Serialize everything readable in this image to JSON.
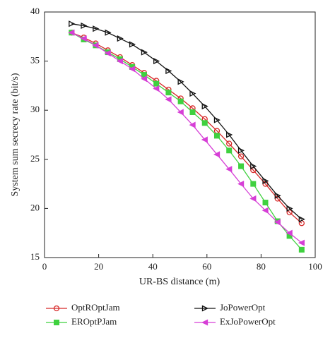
{
  "chart_data": {
    "type": "line",
    "xlabel": "UR-BS distance (m)",
    "ylabel": "System sum secrecy rate (bit/s)",
    "x": [
      10,
      14.5,
      18.9,
      23.4,
      27.9,
      32.4,
      36.8,
      41.3,
      45.8,
      50.3,
      54.7,
      59.2,
      63.7,
      68.2,
      72.6,
      77.1,
      81.6,
      86.1,
      90.5,
      95
    ],
    "xlim": [
      0,
      100
    ],
    "xticks": [
      0,
      20,
      40,
      60,
      80,
      100
    ],
    "ylim": [
      15,
      40
    ],
    "yticks": [
      15,
      20,
      25,
      30,
      35,
      40
    ],
    "series": [
      {
        "name": "OptROptJam",
        "color": "#d62828",
        "marker": "circle",
        "values": [
          37.9,
          37.4,
          36.8,
          36.1,
          35.4,
          34.6,
          33.8,
          33.0,
          32.1,
          31.2,
          30.2,
          29.1,
          27.9,
          26.6,
          25.3,
          23.9,
          22.5,
          21.0,
          19.6,
          18.5
        ]
      },
      {
        "name": "JoPowerOpt",
        "color": "#111111",
        "marker": "triangle-right",
        "values": [
          38.8,
          38.6,
          38.3,
          37.9,
          37.3,
          36.7,
          35.9,
          35.0,
          34.0,
          32.9,
          31.7,
          30.4,
          29.0,
          27.5,
          25.9,
          24.3,
          22.8,
          21.3,
          20.0,
          18.9
        ]
      },
      {
        "name": "EROptPJam",
        "color": "#3fd13f",
        "marker": "square",
        "values": [
          37.9,
          37.2,
          36.6,
          35.9,
          35.2,
          34.4,
          33.6,
          32.7,
          31.8,
          30.9,
          29.8,
          28.7,
          27.4,
          25.9,
          24.3,
          22.5,
          20.6,
          18.7,
          17.2,
          15.8
        ]
      },
      {
        "name": "ExJoPowerOpt",
        "color": "#d63fd6",
        "marker": "triangle-left",
        "values": [
          37.9,
          37.3,
          36.6,
          35.8,
          35.0,
          34.2,
          33.2,
          32.2,
          31.1,
          29.8,
          28.5,
          27.0,
          25.5,
          24.0,
          22.5,
          21.0,
          19.8,
          18.6,
          17.5,
          16.5
        ]
      }
    ]
  }
}
